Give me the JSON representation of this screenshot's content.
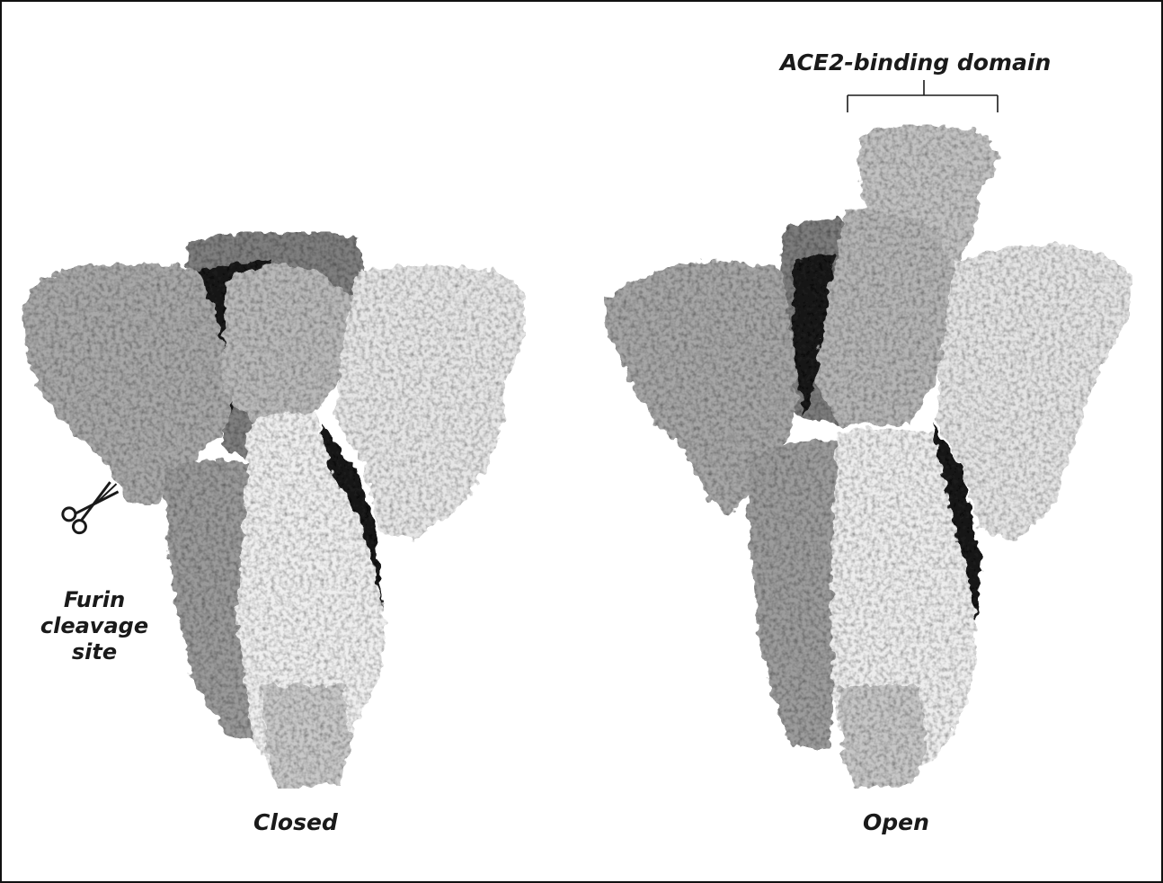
{
  "labels": {
    "closed": "Closed",
    "open": "Open",
    "ace2_domain": "ACE2-binding domain",
    "furin": [
      "Furin",
      "cleavage",
      "site"
    ]
  },
  "icons": {
    "furin_marker": "scissors-icon"
  },
  "colors": {
    "background": "#ffffff",
    "border": "#111111",
    "shade_light": "#ededed",
    "shade_mid": "#b4b4b4",
    "shade_dark": "#8a8a8a",
    "groove": "#1c1c1c"
  }
}
